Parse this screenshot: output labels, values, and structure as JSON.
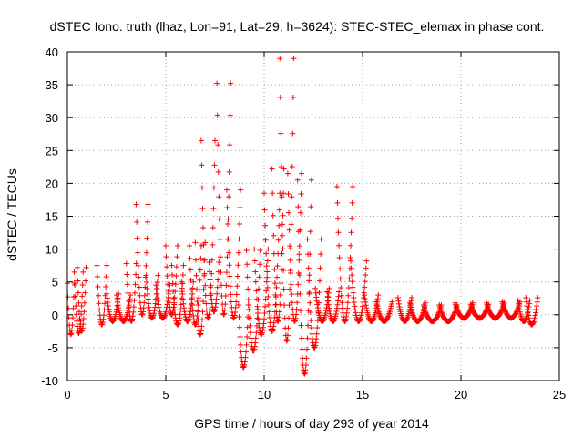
{
  "chart_data": {
    "type": "scatter",
    "title": "dSTEC Iono. truth (lhaz, Lon=91, Lat=29, h=3624): STEC-STEC_elemax in phase cont.",
    "xlabel": "GPS time / hours of day 293 of year 2014",
    "ylabel": "dSTEC  / TECUs",
    "xlim": [
      0,
      25
    ],
    "ylim": [
      -10,
      40
    ],
    "xticks": [
      0,
      5,
      10,
      15,
      20,
      25
    ],
    "yticks": [
      -10,
      -5,
      0,
      5,
      10,
      15,
      20,
      25,
      30,
      35,
      40
    ],
    "grid": true,
    "marker": "+",
    "color": "#ff0000",
    "arcs": [
      {
        "start": 0.0,
        "end": 0.35,
        "low": -3.0,
        "high": 4.8
      },
      {
        "start": 0.35,
        "end": 0.8,
        "low": -2.8,
        "high": 6.5
      },
      {
        "start": 0.5,
        "end": 0.95,
        "low": -2.5,
        "high": 7.2
      },
      {
        "start": 1.5,
        "end": 2.0,
        "low": -1.5,
        "high": 7.5
      },
      {
        "start": 2.0,
        "end": 2.6,
        "low": -1.0,
        "high": 3.2
      },
      {
        "start": 2.5,
        "end": 3.2,
        "low": -1.0,
        "high": 3.0
      },
      {
        "start": 3.0,
        "end": 3.5,
        "low": -1.0,
        "high": 7.8
      },
      {
        "start": 3.5,
        "end": 4.1,
        "low": 0.0,
        "high": 16.8
      },
      {
        "start": 4.0,
        "end": 4.6,
        "low": -0.5,
        "high": 6.0
      },
      {
        "start": 4.5,
        "end": 5.2,
        "low": -0.5,
        "high": 4.5
      },
      {
        "start": 5.0,
        "end": 5.6,
        "low": 0.0,
        "high": 10.5
      },
      {
        "start": 5.3,
        "end": 5.9,
        "low": -1.5,
        "high": 7.5
      },
      {
        "start": 5.8,
        "end": 6.4,
        "low": -1.0,
        "high": 5.0
      },
      {
        "start": 6.2,
        "end": 6.8,
        "low": -1.5,
        "high": 10.5
      },
      {
        "start": 6.5,
        "end": 7.0,
        "low": -3.0,
        "high": 11.0
      },
      {
        "start": 6.8,
        "end": 7.5,
        "low": -0.5,
        "high": 26.5
      },
      {
        "start": 7.2,
        "end": 7.7,
        "low": 0.5,
        "high": 8.0
      },
      {
        "start": 7.6,
        "end": 8.3,
        "low": 0.0,
        "high": 35.2
      },
      {
        "start": 8.1,
        "end": 8.8,
        "low": -0.5,
        "high": 19.0
      },
      {
        "start": 8.7,
        "end": 9.2,
        "low": -8.0,
        "high": 1.5
      },
      {
        "start": 9.1,
        "end": 9.8,
        "low": -5.5,
        "high": 9.8
      },
      {
        "start": 9.5,
        "end": 10.2,
        "low": -3.0,
        "high": 10.0
      },
      {
        "start": 10.0,
        "end": 10.8,
        "low": -2.5,
        "high": 18.5
      },
      {
        "start": 10.4,
        "end": 11.0,
        "low": -1.0,
        "high": 22.2
      },
      {
        "start": 10.8,
        "end": 11.5,
        "low": -4.0,
        "high": 39.0
      },
      {
        "start": 11.2,
        "end": 11.9,
        "low": -1.0,
        "high": 21.5
      },
      {
        "start": 11.7,
        "end": 12.4,
        "low": -9.0,
        "high": 20.5
      },
      {
        "start": 12.2,
        "end": 12.9,
        "low": -5.0,
        "high": 11.5
      },
      {
        "start": 12.6,
        "end": 13.3,
        "low": -1.0,
        "high": 4.0
      },
      {
        "start": 13.2,
        "end": 13.8,
        "low": -1.0,
        "high": 3.5
      },
      {
        "start": 13.7,
        "end": 14.5,
        "low": -1.0,
        "high": 19.5
      },
      {
        "start": 14.4,
        "end": 15.2,
        "low": -1.0,
        "high": 8.2
      },
      {
        "start": 15.1,
        "end": 15.8,
        "low": -1.0,
        "high": 3.0
      },
      {
        "start": 15.7,
        "end": 16.5,
        "low": -1.0,
        "high": 2.0
      },
      {
        "start": 16.8,
        "end": 17.5,
        "low": -1.0,
        "high": 2.6
      },
      {
        "start": 17.4,
        "end": 18.2,
        "low": -1.0,
        "high": 1.8
      },
      {
        "start": 18.1,
        "end": 19.0,
        "low": -1.0,
        "high": 1.5
      },
      {
        "start": 18.9,
        "end": 19.8,
        "low": -1.0,
        "high": 1.5
      },
      {
        "start": 19.7,
        "end": 20.6,
        "low": -0.5,
        "high": 1.8
      },
      {
        "start": 20.5,
        "end": 21.4,
        "low": -0.5,
        "high": 1.6
      },
      {
        "start": 21.3,
        "end": 22.2,
        "low": -0.5,
        "high": 1.8
      },
      {
        "start": 22.1,
        "end": 23.0,
        "low": -0.5,
        "high": 2.0
      },
      {
        "start": 22.9,
        "end": 23.5,
        "low": -1.0,
        "high": 2.2
      },
      {
        "start": 23.3,
        "end": 23.9,
        "low": -1.5,
        "high": 2.6
      }
    ]
  }
}
